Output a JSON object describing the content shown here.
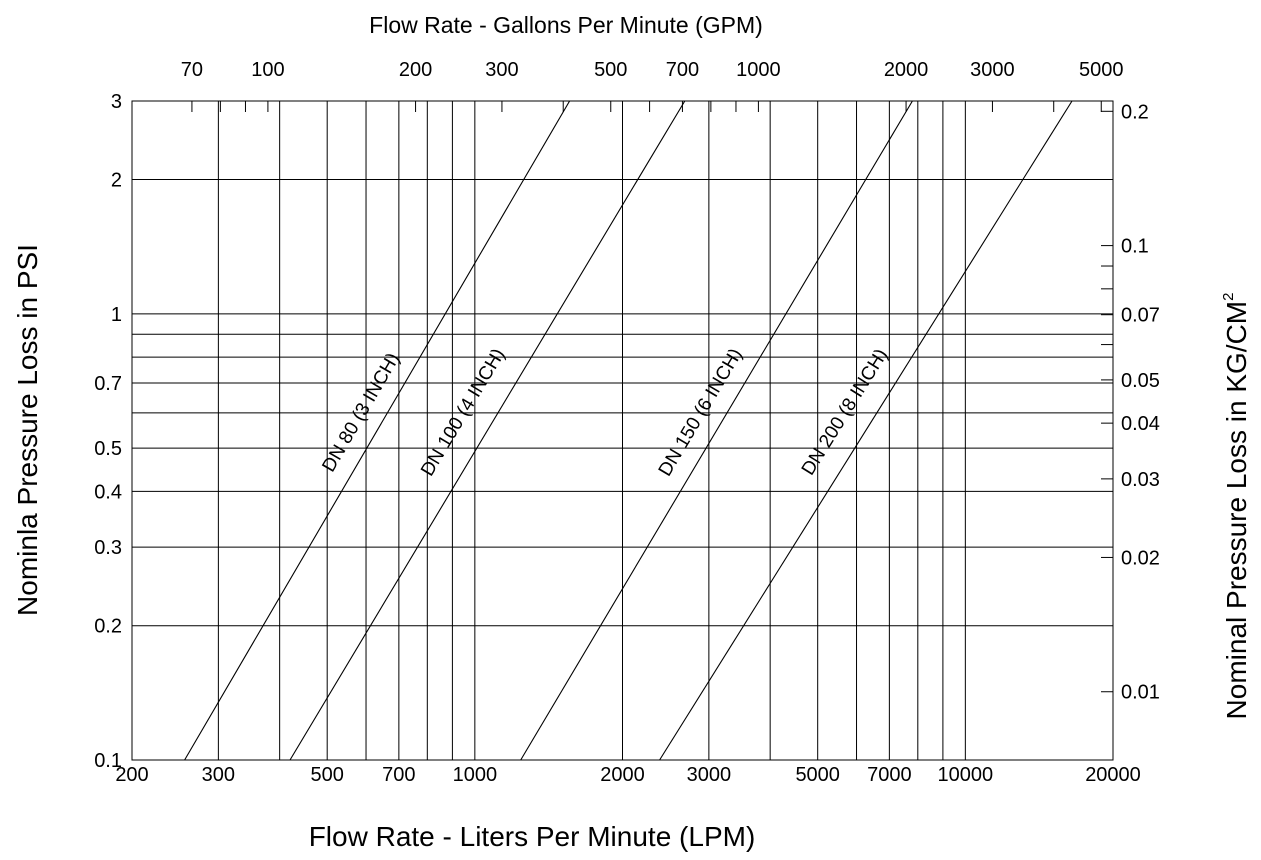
{
  "chart_data": {
    "type": "line",
    "x_scale": "log",
    "y_scale": "log",
    "xlim": [
      200,
      20000
    ],
    "ylim": [
      0.1,
      3
    ],
    "grid": true,
    "xlabel": "Flow Rate -  Liters Per Minute (LPM)",
    "x2label": "Flow Rate - Gallons Per Minute (GPM)",
    "ylabel": "Nominla Pressure Loss in PSI",
    "y2label": "Nominal Pressure Loss in KG/CM",
    "y2label_sup": "2",
    "x_ticks": [
      200,
      300,
      500,
      700,
      1000,
      2000,
      3000,
      5000,
      7000,
      10000,
      20000
    ],
    "x_tick_labels": [
      "200",
      "300",
      "500",
      "700",
      "1000",
      "2000",
      "3000",
      "5000",
      "7000",
      "10000",
      "20000"
    ],
    "x2_ticks": [
      70,
      100,
      200,
      300,
      500,
      700,
      1000,
      2000,
      3000,
      5000
    ],
    "x2_tick_labels": [
      "70",
      "100",
      "200",
      "300",
      "500",
      "700",
      "1000",
      "2000",
      "3000",
      "5000"
    ],
    "y_ticks": [
      0.1,
      0.2,
      0.3,
      0.4,
      0.5,
      0.7,
      1,
      2,
      3
    ],
    "y_tick_labels": [
      "0.1",
      "0.2",
      "0.3",
      "0.4",
      "0.5",
      "0.7",
      "1",
      "2",
      "3"
    ],
    "y2_ticks": [
      0.01,
      0.02,
      0.03,
      0.04,
      0.05,
      0.07,
      0.1,
      0.2
    ],
    "y2_tick_labels": [
      "0.01",
      "0.02",
      "0.03",
      "0.04",
      "0.05",
      "0.07",
      "0.1",
      "0.2"
    ],
    "series": [
      {
        "name": "DN 80  (3 INCH)",
        "x": [
          256,
          1560
        ],
        "y": [
          0.1,
          3
        ],
        "label_at": [
          620,
          0.58
        ]
      },
      {
        "name": "DN 100 (4 INCH)",
        "x": [
          420,
          2680
        ],
        "y": [
          0.1,
          3
        ],
        "label_at": [
          1000,
          0.58
        ]
      },
      {
        "name": "DN 150  (6 INCH)",
        "x": [
          1240,
          7800
        ],
        "y": [
          0.1,
          3
        ],
        "label_at": [
          3050,
          0.58
        ]
      },
      {
        "name": "DN 200  (8 INCH)",
        "x": [
          2380,
          16500
        ],
        "y": [
          0.1,
          3
        ],
        "label_at": [
          6000,
          0.58
        ]
      }
    ]
  }
}
